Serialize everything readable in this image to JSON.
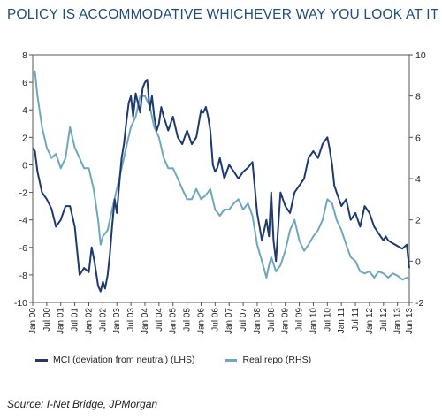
{
  "header": {
    "title": "POLICY IS ACCOMMODATIVE WHICHEVER WAY YOU LOOK AT IT ..."
  },
  "footer": {
    "source": "Source: I-Net Bridge, JPMorgan"
  },
  "chart_data": {
    "type": "line",
    "title": "POLICY IS ACCOMMODATIVE WHICHEVER WAY YOU LOOK AT IT ...",
    "xlabel": "",
    "ylabel": "",
    "y_left": {
      "lim": [
        -10,
        8
      ],
      "ticks": [
        -10,
        -8,
        -6,
        -4,
        -2,
        0,
        2,
        4,
        6,
        8
      ]
    },
    "y_right": {
      "lim": [
        -2,
        10
      ],
      "ticks": [
        -2,
        0,
        2,
        4,
        6,
        8,
        10
      ]
    },
    "x_ticks": [
      "Jan 00",
      "Jul 00",
      "Jan 01",
      "Jul 01",
      "Jan 02",
      "Jul 02",
      "Jan 03",
      "Jul 03",
      "Jan 04",
      "Jul 04",
      "Jan 05",
      "Jul 05",
      "Jan 06",
      "Jul 06",
      "Jan 07",
      "Jul 07",
      "Jan 08",
      "Jul 08",
      "Jan 09",
      "Jul 09",
      "Jan 10",
      "Jul 10",
      "Jan 11",
      "Jul 11",
      "Jan 12",
      "Jul 12",
      "Jan 13",
      "Jun 13"
    ],
    "grid": false,
    "legend": "bottom",
    "colors": {
      "mci": "#1f3a6e",
      "repo": "#6fa8bd"
    },
    "series": [
      {
        "name": "MCI (deviation from neutral) (LHS)",
        "axis": "left",
        "x": [
          2000.0,
          2000.08,
          2000.17,
          2000.33,
          2000.5,
          2000.67,
          2000.83,
          2001.0,
          2001.17,
          2001.33,
          2001.5,
          2001.67,
          2001.83,
          2002.0,
          2002.1,
          2002.2,
          2002.33,
          2002.42,
          2002.5,
          2002.58,
          2002.67,
          2002.75,
          2002.83,
          2002.92,
          2003.0,
          2003.08,
          2003.17,
          2003.25,
          2003.33,
          2003.42,
          2003.5,
          2003.58,
          2003.67,
          2003.75,
          2003.83,
          2003.92,
          2004.0,
          2004.08,
          2004.17,
          2004.25,
          2004.33,
          2004.42,
          2004.5,
          2004.58,
          2004.67,
          2004.83,
          2005.0,
          2005.17,
          2005.33,
          2005.5,
          2005.67,
          2005.83,
          2006.0,
          2006.08,
          2006.17,
          2006.25,
          2006.33,
          2006.42,
          2006.5,
          2006.58,
          2006.67,
          2006.83,
          2007.0,
          2007.17,
          2007.33,
          2007.5,
          2007.67,
          2007.83,
          2008.0,
          2008.17,
          2008.33,
          2008.42,
          2008.5,
          2008.58,
          2008.67,
          2008.83,
          2009.0,
          2009.17,
          2009.33,
          2009.5,
          2009.67,
          2009.83,
          2010.0,
          2010.17,
          2010.33,
          2010.5,
          2010.58,
          2010.67,
          2010.75,
          2010.83,
          2011.0,
          2011.17,
          2011.33,
          2011.5,
          2011.67,
          2011.83,
          2012.0,
          2012.17,
          2012.33,
          2012.5,
          2012.58,
          2012.67,
          2012.83,
          2013.0,
          2013.17,
          2013.33,
          2013.42
        ],
        "values": [
          1.2,
          1.0,
          -0.5,
          -2.0,
          -2.5,
          -3.2,
          -4.5,
          -4.0,
          -3.0,
          -3.0,
          -4.5,
          -8.0,
          -7.5,
          -7.8,
          -6.0,
          -7.0,
          -8.8,
          -9.2,
          -8.5,
          -9.0,
          -8.0,
          -6.5,
          -4.5,
          -2.5,
          -3.5,
          -1.5,
          0.5,
          1.5,
          3.0,
          4.5,
          5.0,
          3.5,
          5.2,
          4.5,
          3.8,
          5.6,
          6.0,
          6.2,
          4.0,
          5.0,
          3.5,
          2.5,
          3.0,
          4.2,
          3.5,
          2.5,
          3.5,
          2.0,
          1.5,
          2.5,
          1.5,
          2.0,
          4.0,
          3.8,
          4.2,
          3.5,
          2.5,
          0.0,
          -0.5,
          -0.2,
          0.5,
          -1.0,
          0.0,
          -0.5,
          -1.0,
          -0.5,
          -0.2,
          0.2,
          -3.5,
          -5.5,
          -4.0,
          -5.2,
          -2.0,
          -5.5,
          -7.0,
          -2.0,
          -3.0,
          -3.5,
          -2.0,
          -1.5,
          -1.0,
          0.5,
          1.0,
          0.5,
          1.5,
          2.0,
          1.2,
          0.0,
          -1.5,
          -2.0,
          -3.0,
          -2.5,
          -4.0,
          -3.5,
          -4.5,
          -3.0,
          -3.5,
          -4.5,
          -5.0,
          -5.5,
          -5.2,
          -5.5,
          -5.7,
          -5.9,
          -6.1,
          -5.8,
          -7.5
        ]
      },
      {
        "name": "Real repo (RHS)",
        "axis": "right",
        "x": [
          2000.0,
          2000.08,
          2000.17,
          2000.33,
          2000.5,
          2000.67,
          2000.83,
          2001.0,
          2001.17,
          2001.33,
          2001.5,
          2001.67,
          2001.83,
          2002.0,
          2002.17,
          2002.33,
          2002.42,
          2002.5,
          2002.67,
          2002.83,
          2003.0,
          2003.17,
          2003.33,
          2003.5,
          2003.67,
          2003.83,
          2004.0,
          2004.17,
          2004.33,
          2004.5,
          2004.67,
          2004.83,
          2005.0,
          2005.17,
          2005.33,
          2005.5,
          2005.67,
          2005.83,
          2006.0,
          2006.17,
          2006.33,
          2006.5,
          2006.67,
          2006.83,
          2007.0,
          2007.17,
          2007.33,
          2007.5,
          2007.67,
          2007.83,
          2008.0,
          2008.17,
          2008.33,
          2008.42,
          2008.5,
          2008.67,
          2008.83,
          2009.0,
          2009.17,
          2009.33,
          2009.5,
          2009.67,
          2009.83,
          2010.0,
          2010.17,
          2010.33,
          2010.5,
          2010.67,
          2010.83,
          2011.0,
          2011.17,
          2011.33,
          2011.5,
          2011.67,
          2011.83,
          2012.0,
          2012.17,
          2012.33,
          2012.5,
          2012.67,
          2012.83,
          2013.0,
          2013.17,
          2013.33,
          2013.42
        ],
        "values": [
          9.0,
          9.2,
          8.0,
          6.5,
          5.5,
          5.0,
          5.2,
          4.5,
          5.0,
          6.5,
          5.5,
          5.0,
          4.5,
          4.5,
          3.5,
          2.0,
          0.8,
          1.2,
          1.5,
          2.5,
          3.5,
          4.5,
          5.5,
          6.5,
          7.0,
          8.0,
          8.0,
          7.5,
          6.5,
          6.0,
          5.0,
          4.5,
          4.5,
          4.0,
          3.5,
          3.0,
          3.0,
          3.5,
          3.0,
          3.2,
          3.5,
          2.5,
          2.2,
          2.5,
          2.5,
          2.8,
          3.0,
          2.5,
          2.8,
          2.2,
          0.8,
          0.0,
          -0.8,
          -0.2,
          0.2,
          -0.5,
          -0.2,
          0.5,
          1.5,
          2.0,
          1.0,
          0.5,
          0.8,
          1.2,
          1.5,
          2.0,
          3.0,
          2.8,
          2.0,
          1.5,
          0.8,
          0.2,
          0.0,
          -0.5,
          -0.6,
          -0.5,
          -0.8,
          -0.5,
          -0.6,
          -0.8,
          -0.6,
          -0.7,
          -0.9,
          -0.8,
          -0.9
        ]
      }
    ]
  }
}
